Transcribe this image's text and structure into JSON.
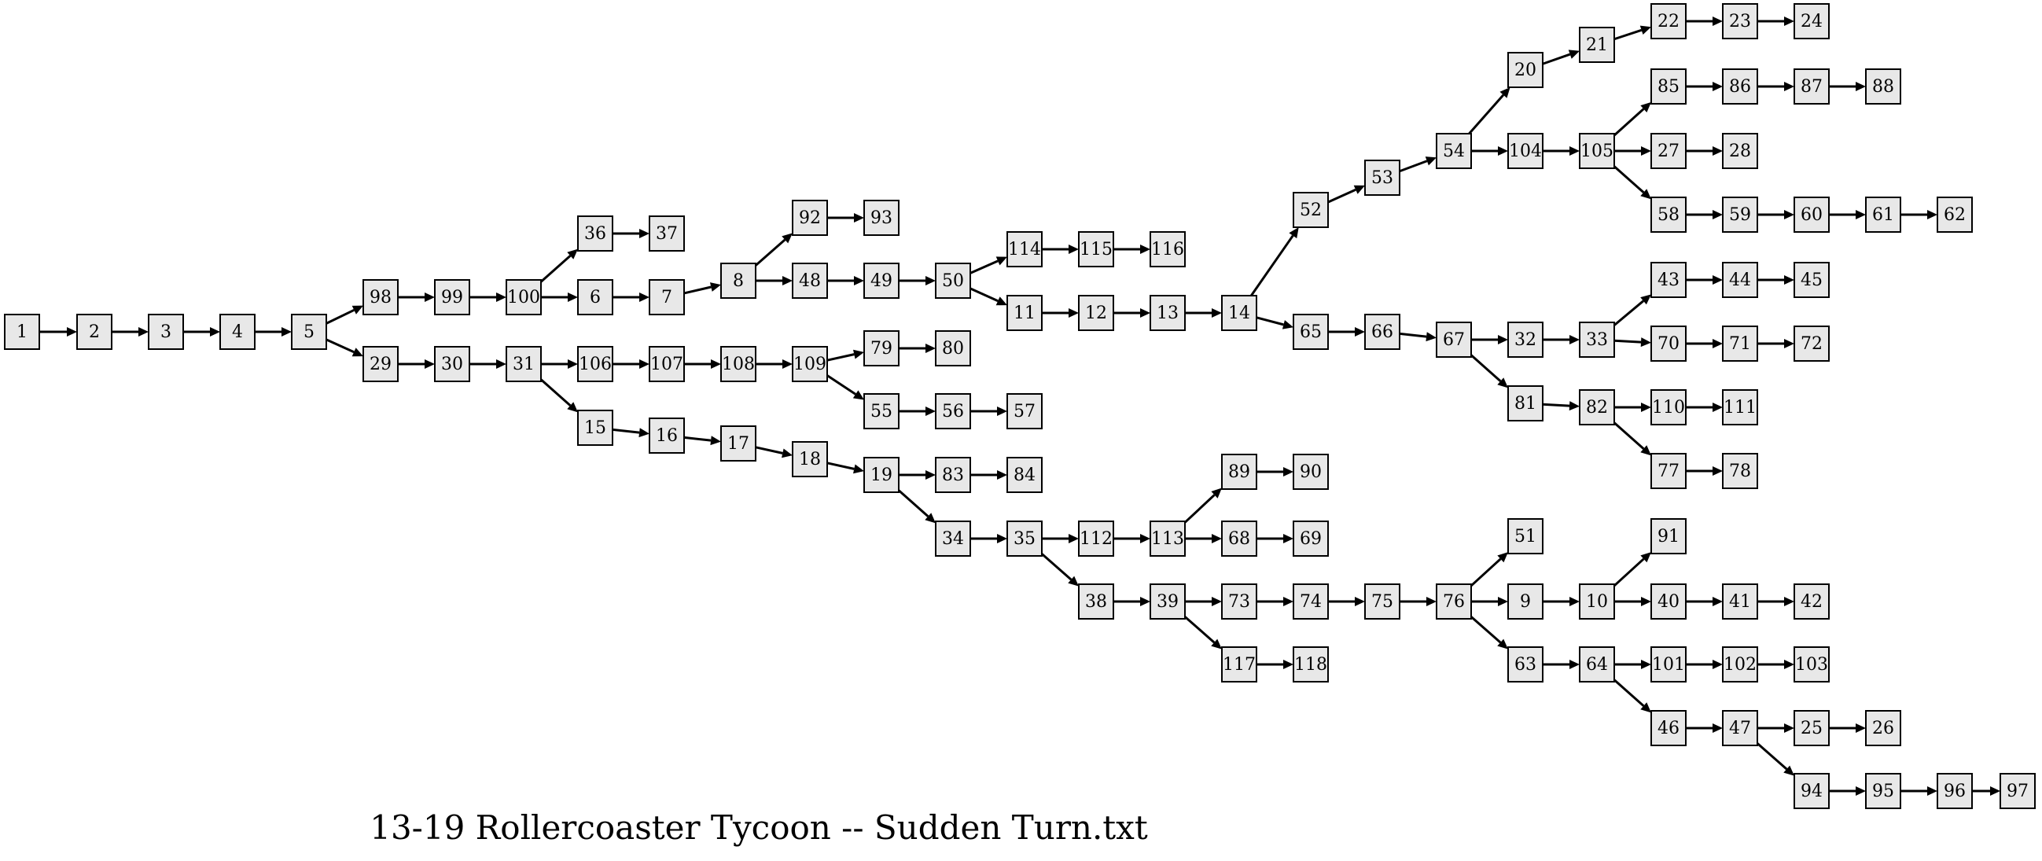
{
  "title": "13-19 Rollercoaster Tycoon -- Sudden Turn.txt",
  "graph": {
    "edges": [
      [
        "1",
        "2"
      ],
      [
        "2",
        "3"
      ],
      [
        "3",
        "4"
      ],
      [
        "4",
        "5"
      ],
      [
        "5",
        "98"
      ],
      [
        "5",
        "29"
      ],
      [
        "98",
        "99"
      ],
      [
        "99",
        "100"
      ],
      [
        "100",
        "36"
      ],
      [
        "100",
        "6"
      ],
      [
        "36",
        "37"
      ],
      [
        "6",
        "7"
      ],
      [
        "7",
        "8"
      ],
      [
        "8",
        "92"
      ],
      [
        "8",
        "48"
      ],
      [
        "92",
        "93"
      ],
      [
        "48",
        "49"
      ],
      [
        "49",
        "50"
      ],
      [
        "50",
        "114"
      ],
      [
        "50",
        "11"
      ],
      [
        "114",
        "115"
      ],
      [
        "115",
        "116"
      ],
      [
        "11",
        "12"
      ],
      [
        "12",
        "13"
      ],
      [
        "13",
        "14"
      ],
      [
        "14",
        "52"
      ],
      [
        "14",
        "65"
      ],
      [
        "52",
        "53"
      ],
      [
        "53",
        "54"
      ],
      [
        "54",
        "20"
      ],
      [
        "54",
        "104"
      ],
      [
        "20",
        "21"
      ],
      [
        "21",
        "22"
      ],
      [
        "22",
        "23"
      ],
      [
        "23",
        "24"
      ],
      [
        "104",
        "105"
      ],
      [
        "105",
        "85"
      ],
      [
        "105",
        "27"
      ],
      [
        "105",
        "58"
      ],
      [
        "85",
        "86"
      ],
      [
        "86",
        "87"
      ],
      [
        "87",
        "88"
      ],
      [
        "27",
        "28"
      ],
      [
        "58",
        "59"
      ],
      [
        "59",
        "60"
      ],
      [
        "60",
        "61"
      ],
      [
        "61",
        "62"
      ],
      [
        "65",
        "66"
      ],
      [
        "66",
        "67"
      ],
      [
        "67",
        "32"
      ],
      [
        "67",
        "81"
      ],
      [
        "32",
        "33"
      ],
      [
        "33",
        "43"
      ],
      [
        "33",
        "70"
      ],
      [
        "43",
        "44"
      ],
      [
        "44",
        "45"
      ],
      [
        "70",
        "71"
      ],
      [
        "71",
        "72"
      ],
      [
        "81",
        "82"
      ],
      [
        "82",
        "110"
      ],
      [
        "82",
        "77"
      ],
      [
        "110",
        "111"
      ],
      [
        "77",
        "78"
      ],
      [
        "29",
        "30"
      ],
      [
        "30",
        "31"
      ],
      [
        "31",
        "106"
      ],
      [
        "31",
        "15"
      ],
      [
        "106",
        "107"
      ],
      [
        "107",
        "108"
      ],
      [
        "108",
        "109"
      ],
      [
        "109",
        "79"
      ],
      [
        "109",
        "55"
      ],
      [
        "79",
        "80"
      ],
      [
        "55",
        "56"
      ],
      [
        "56",
        "57"
      ],
      [
        "15",
        "16"
      ],
      [
        "16",
        "17"
      ],
      [
        "17",
        "18"
      ],
      [
        "18",
        "19"
      ],
      [
        "19",
        "83"
      ],
      [
        "19",
        "34"
      ],
      [
        "83",
        "84"
      ],
      [
        "34",
        "35"
      ],
      [
        "35",
        "112"
      ],
      [
        "35",
        "38"
      ],
      [
        "112",
        "113"
      ],
      [
        "113",
        "89"
      ],
      [
        "113",
        "68"
      ],
      [
        "89",
        "90"
      ],
      [
        "68",
        "69"
      ],
      [
        "38",
        "39"
      ],
      [
        "39",
        "73"
      ],
      [
        "39",
        "117"
      ],
      [
        "117",
        "118"
      ],
      [
        "73",
        "74"
      ],
      [
        "74",
        "75"
      ],
      [
        "75",
        "76"
      ],
      [
        "76",
        "51"
      ],
      [
        "76",
        "9"
      ],
      [
        "76",
        "63"
      ],
      [
        "9",
        "10"
      ],
      [
        "10",
        "91"
      ],
      [
        "10",
        "40"
      ],
      [
        "40",
        "41"
      ],
      [
        "41",
        "42"
      ],
      [
        "63",
        "64"
      ],
      [
        "64",
        "101"
      ],
      [
        "64",
        "46"
      ],
      [
        "101",
        "102"
      ],
      [
        "102",
        "103"
      ],
      [
        "46",
        "47"
      ],
      [
        "47",
        "25"
      ],
      [
        "47",
        "94"
      ],
      [
        "25",
        "26"
      ],
      [
        "94",
        "95"
      ],
      [
        "95",
        "96"
      ],
      [
        "96",
        "97"
      ]
    ]
  }
}
